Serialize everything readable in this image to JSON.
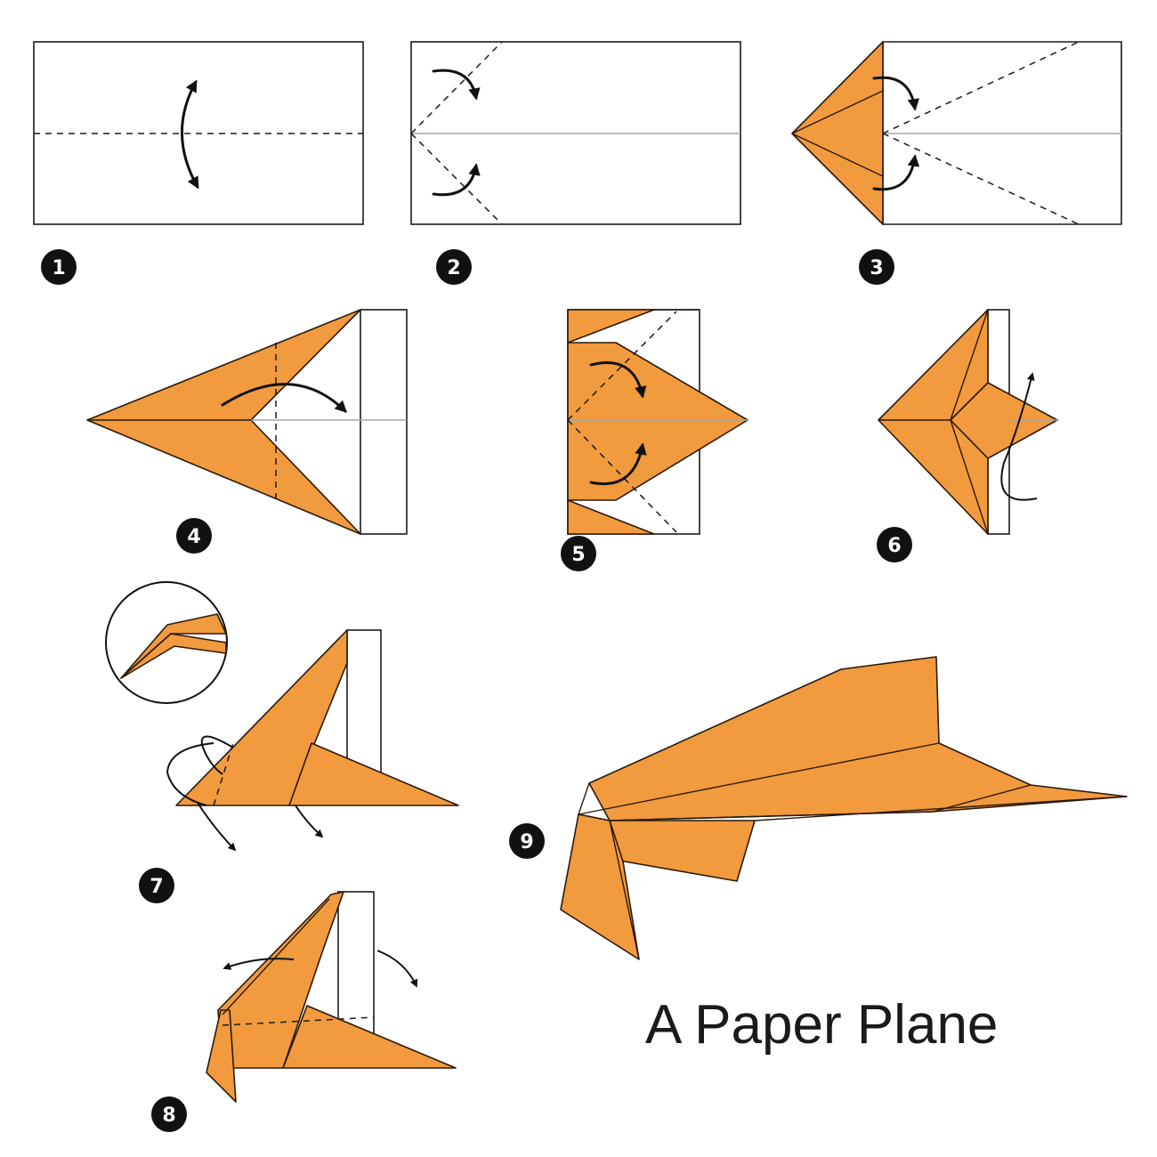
{
  "colors": {
    "paper_orange": "#F29A3E",
    "outline": "#1A1A1A",
    "guide": "#A6A6A6"
  },
  "steps": [
    {
      "number": "1"
    },
    {
      "number": "2"
    },
    {
      "number": "3"
    },
    {
      "number": "4"
    },
    {
      "number": "5"
    },
    {
      "number": "6"
    },
    {
      "number": "7"
    },
    {
      "number": "8"
    },
    {
      "number": "9"
    }
  ],
  "title": "A Paper Plane"
}
